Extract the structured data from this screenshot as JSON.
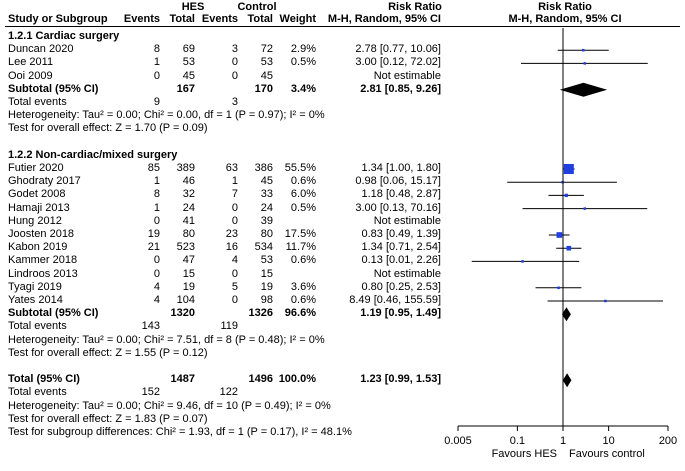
{
  "header": {
    "hes": "HES",
    "control": "Control",
    "risk_ratio_left": "Risk Ratio",
    "risk_ratio_right": "Risk Ratio",
    "study": "Study or Subgroup",
    "events": "Events",
    "total": "Total",
    "events2": "Events",
    "total2": "Total",
    "weight": "Weight",
    "method_left": "M-H, Random, 95% CI",
    "method_right": "M-H, Random, 95% CI"
  },
  "chart_data": {
    "type": "forest",
    "x_scale": "log",
    "xlim": [
      0.005,
      200
    ],
    "ticks": [
      "0.005",
      "0.1",
      "1",
      "10",
      "200"
    ],
    "tick_values": [
      0.005,
      0.1,
      1,
      10,
      200
    ],
    "favours_left": "Favours HES",
    "favours_right": "Favours control",
    "rows": [
      {
        "kind": "group",
        "label": "1.2.1 Cardiac surgery"
      },
      {
        "kind": "study",
        "label": "Duncan 2020",
        "e1": "8",
        "n1": "69",
        "e2": "3",
        "n2": "72",
        "weight": "2.9%",
        "ci": "2.78 [0.77, 10.06]",
        "rr": 2.78,
        "lo": 0.77,
        "hi": 10.06,
        "w": 2.9
      },
      {
        "kind": "study",
        "label": "Lee 2011",
        "e1": "1",
        "n1": "53",
        "e2": "0",
        "n2": "53",
        "weight": "0.5%",
        "ci": "3.00 [0.12, 72.02]",
        "rr": 3.0,
        "lo": 0.12,
        "hi": 72.02,
        "w": 0.5
      },
      {
        "kind": "study",
        "label": "Ooi  2009",
        "e1": "0",
        "n1": "45",
        "e2": "0",
        "n2": "45",
        "weight": "",
        "ci": "Not estimable"
      },
      {
        "kind": "subtotal",
        "label": "Subtotal (95% CI)",
        "n1": "167",
        "n2": "170",
        "weight": "3.4%",
        "ci": "2.81 [0.85, 9.26]",
        "rr": 2.81,
        "lo": 0.85,
        "hi": 9.26
      },
      {
        "kind": "events",
        "label": "Total events",
        "e1": "9",
        "e2": "3"
      },
      {
        "kind": "note",
        "label": "Heterogeneity: Tau² = 0.00; Chi² = 0.00, df = 1 (P = 0.97); I² = 0%"
      },
      {
        "kind": "note",
        "label": "Test for overall effect: Z = 1.70 (P = 0.09)"
      },
      {
        "kind": "blank"
      },
      {
        "kind": "group",
        "label": "1.2.2 Non-cardiac/mixed surgery"
      },
      {
        "kind": "study",
        "label": "Futier 2020",
        "e1": "85",
        "n1": "389",
        "e2": "63",
        "n2": "386",
        "weight": "55.5%",
        "ci": "1.34 [1.00, 1.80]",
        "rr": 1.34,
        "lo": 1.0,
        "hi": 1.8,
        "w": 55.5
      },
      {
        "kind": "study",
        "label": "Ghodraty 2017",
        "e1": "1",
        "n1": "46",
        "e2": "1",
        "n2": "45",
        "weight": "0.6%",
        "ci": "0.98 [0.06, 15.17]",
        "rr": 0.98,
        "lo": 0.06,
        "hi": 15.17,
        "w": 0.6
      },
      {
        "kind": "study",
        "label": "Godet 2008",
        "e1": "8",
        "n1": "32",
        "e2": "7",
        "n2": "33",
        "weight": "6.0%",
        "ci": "1.18 [0.48, 2.87]",
        "rr": 1.18,
        "lo": 0.48,
        "hi": 2.87,
        "w": 6.0
      },
      {
        "kind": "study",
        "label": "Hamaji 2013",
        "e1": "1",
        "n1": "24",
        "e2": "0",
        "n2": "24",
        "weight": "0.5%",
        "ci": "3.00 [0.13, 70.16]",
        "rr": 3.0,
        "lo": 0.13,
        "hi": 70.16,
        "w": 0.5
      },
      {
        "kind": "study",
        "label": "Hung 2012",
        "e1": "0",
        "n1": "41",
        "e2": "0",
        "n2": "39",
        "weight": "",
        "ci": "Not estimable"
      },
      {
        "kind": "study",
        "label": "Joosten 2018",
        "e1": "19",
        "n1": "80",
        "e2": "23",
        "n2": "80",
        "weight": "17.5%",
        "ci": "0.83 [0.49, 1.39]",
        "rr": 0.83,
        "lo": 0.49,
        "hi": 1.39,
        "w": 17.5
      },
      {
        "kind": "study",
        "label": "Kabon 2019",
        "e1": "21",
        "n1": "523",
        "e2": "16",
        "n2": "534",
        "weight": "11.7%",
        "ci": "1.34 [0.71, 2.54]",
        "rr": 1.34,
        "lo": 0.71,
        "hi": 2.54,
        "w": 11.7
      },
      {
        "kind": "study",
        "label": "Kammer 2018",
        "e1": "0",
        "n1": "47",
        "e2": "4",
        "n2": "53",
        "weight": "0.6%",
        "ci": "0.13 [0.01, 2.26]",
        "rr": 0.13,
        "lo": 0.01,
        "hi": 2.26,
        "w": 0.6
      },
      {
        "kind": "study",
        "label": "Lindroos 2013",
        "e1": "0",
        "n1": "15",
        "e2": "0",
        "n2": "15",
        "weight": "",
        "ci": "Not estimable"
      },
      {
        "kind": "study",
        "label": "Tyagi 2019",
        "e1": "4",
        "n1": "19",
        "e2": "5",
        "n2": "19",
        "weight": "3.6%",
        "ci": "0.80 [0.25, 2.53]",
        "rr": 0.8,
        "lo": 0.25,
        "hi": 2.53,
        "w": 3.6
      },
      {
        "kind": "study",
        "label": "Yates 2014",
        "e1": "4",
        "n1": "104",
        "e2": "0",
        "n2": "98",
        "weight": "0.6%",
        "ci": "8.49 [0.46, 155.59]",
        "rr": 8.49,
        "lo": 0.46,
        "hi": 155.59,
        "w": 0.6
      },
      {
        "kind": "subtotal",
        "label": "Subtotal (95% CI)",
        "n1": "1320",
        "n2": "1326",
        "weight": "96.6%",
        "ci": "1.19 [0.95, 1.49]",
        "rr": 1.19,
        "lo": 0.95,
        "hi": 1.49
      },
      {
        "kind": "events",
        "label": "Total events",
        "e1": "143",
        "e2": "119"
      },
      {
        "kind": "note",
        "label": "Heterogeneity: Tau² = 0.00; Chi² = 7.51, df = 8 (P = 0.48); I² = 0%"
      },
      {
        "kind": "note",
        "label": "Test for overall effect: Z = 1.55 (P = 0.12)"
      },
      {
        "kind": "blank"
      },
      {
        "kind": "total",
        "label": "Total (95% CI)",
        "n1": "1487",
        "n2": "1496",
        "weight": "100.0%",
        "ci": "1.23 [0.99, 1.53]",
        "rr": 1.23,
        "lo": 0.99,
        "hi": 1.53
      },
      {
        "kind": "events",
        "label": "Total events",
        "e1": "152",
        "e2": "122"
      },
      {
        "kind": "note",
        "label": "Heterogeneity: Tau² = 0.00; Chi² = 9.46, df = 10 (P = 0.49); I² = 0%"
      },
      {
        "kind": "note",
        "label": "Test for overall effect: Z = 1.83 (P = 0.07)"
      },
      {
        "kind": "note",
        "label": "Test for subgroup differences: Chi² = 1.93, df = 1 (P = 0.17), I² = 48.1%"
      }
    ]
  },
  "colors": {
    "square": "#1f3fe0",
    "diamond": "#000000",
    "line": "#000000"
  }
}
